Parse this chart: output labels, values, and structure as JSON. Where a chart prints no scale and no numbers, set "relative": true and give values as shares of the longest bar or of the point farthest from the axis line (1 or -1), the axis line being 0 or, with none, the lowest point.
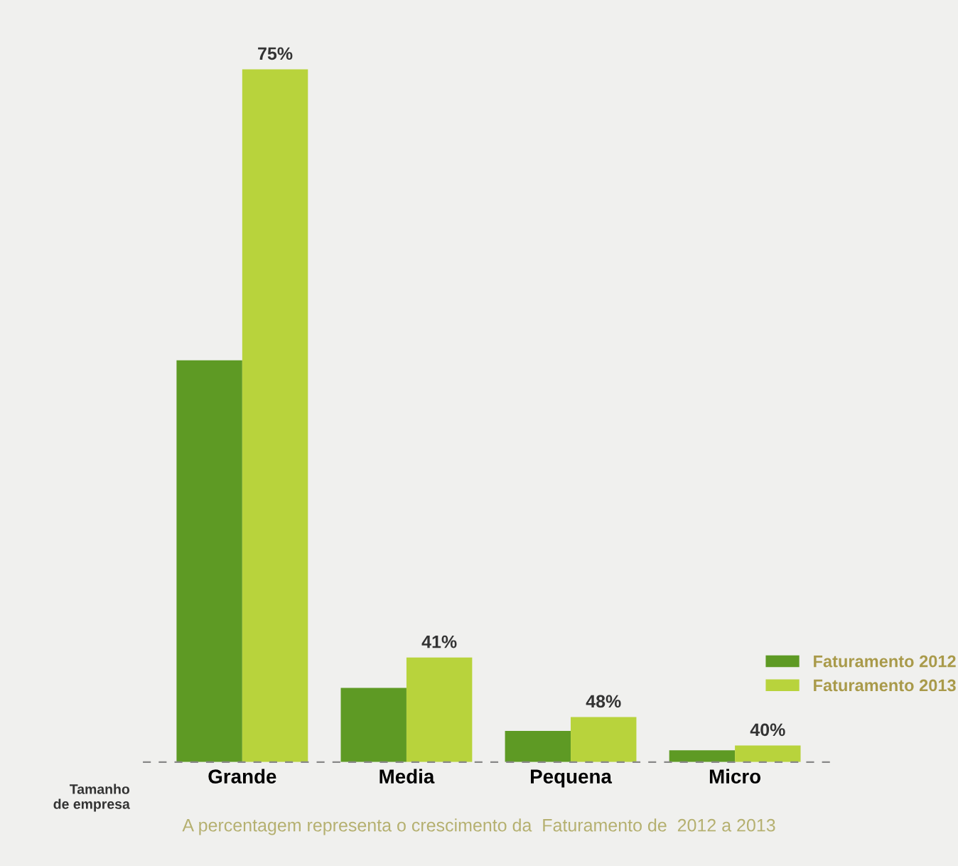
{
  "chart_data": {
    "type": "bar",
    "relative": true,
    "xlabel": "Tamanho\nde empresa",
    "categories": [
      "Grande",
      "Media",
      "Pequena",
      "Micro"
    ],
    "series": [
      {
        "name": "Faturamento 2012",
        "color": "#5e9a24",
        "values": [
          0.58,
          0.107,
          0.045,
          0.017
        ]
      },
      {
        "name": "Faturamento 2013",
        "color": "#b8d33c",
        "values": [
          1,
          0.151,
          0.065,
          0.024
        ]
      }
    ],
    "legend": "right",
    "grid": false,
    "annotations": [
      {
        "text": "75%",
        "x": "Grande",
        "y": 1
      },
      {
        "text": "41%",
        "x": "Media",
        "y": 0.151
      },
      {
        "text": "48%",
        "x": "Pequena",
        "y": 0.065
      },
      {
        "text": "40%",
        "x": "Micro",
        "y": 0.024
      },
      "A percentagem representa o crescimento da  Faturamento de  2012 a 2013"
    ]
  }
}
